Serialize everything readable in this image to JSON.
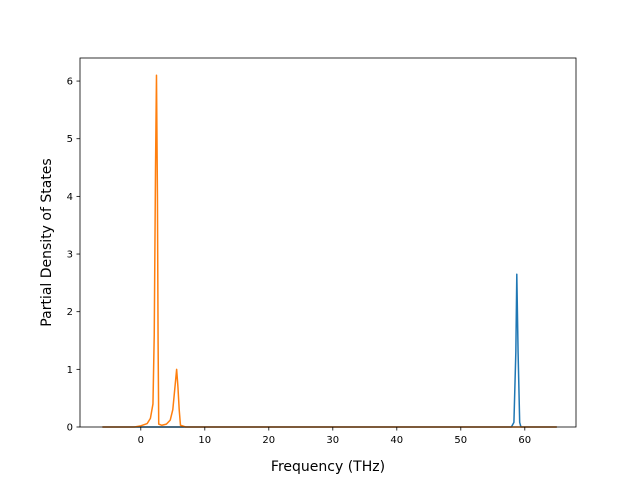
{
  "chart_data": {
    "type": "line",
    "title": "",
    "xlabel": "Frequency (THz)",
    "ylabel": "Partial Density of States",
    "xlim": [
      -9.5,
      68
    ],
    "ylim": [
      0,
      6.4
    ],
    "xticks": [
      0,
      10,
      20,
      30,
      40,
      50,
      60
    ],
    "yticks": [
      0,
      1,
      2,
      3,
      4,
      5,
      6
    ],
    "grid": false,
    "legend": "none",
    "series": [
      {
        "color": "#1f77b4",
        "points": [
          [
            -6.0,
            0
          ],
          [
            10.0,
            0
          ],
          [
            57.9,
            0
          ],
          [
            58.3,
            0.08
          ],
          [
            58.6,
            1.3
          ],
          [
            58.75,
            2.65
          ],
          [
            58.95,
            1.3
          ],
          [
            59.2,
            0.08
          ],
          [
            59.4,
            0
          ],
          [
            65.0,
            0
          ]
        ]
      },
      {
        "color": "#ff7f0e",
        "points": [
          [
            -6.0,
            0
          ],
          [
            -1.0,
            0
          ],
          [
            0.0,
            0.02
          ],
          [
            1.0,
            0.06
          ],
          [
            1.5,
            0.15
          ],
          [
            1.9,
            0.4
          ],
          [
            2.1,
            1.6
          ],
          [
            2.3,
            4.5
          ],
          [
            2.45,
            6.1
          ],
          [
            2.6,
            4.0
          ],
          [
            2.7,
            1.5
          ],
          [
            2.8,
            0.05
          ],
          [
            3.3,
            0.03
          ],
          [
            4.0,
            0.05
          ],
          [
            4.6,
            0.12
          ],
          [
            5.0,
            0.3
          ],
          [
            5.3,
            0.65
          ],
          [
            5.6,
            1.0
          ],
          [
            5.8,
            0.7
          ],
          [
            6.0,
            0.3
          ],
          [
            6.2,
            0.03
          ],
          [
            7.0,
            0
          ],
          [
            10.0,
            0
          ],
          [
            65.0,
            0
          ]
        ]
      }
    ]
  }
}
